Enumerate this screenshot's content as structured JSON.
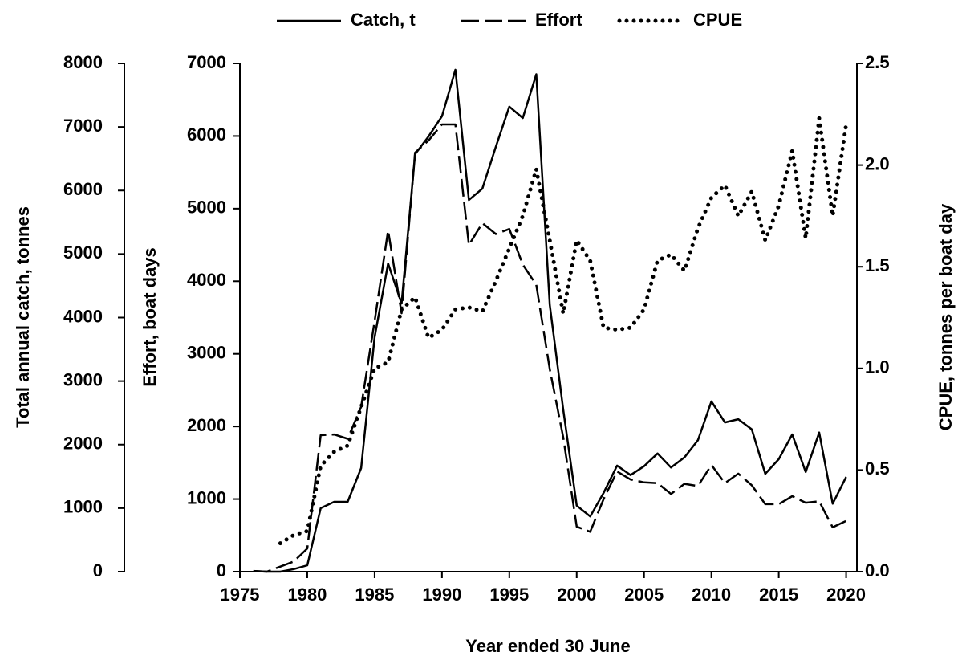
{
  "chart_data": {
    "type": "line",
    "x": [
      1976,
      1977,
      1978,
      1979,
      1980,
      1981,
      1982,
      1983,
      1984,
      1985,
      1986,
      1987,
      1988,
      1989,
      1990,
      1991,
      1992,
      1993,
      1994,
      1995,
      1996,
      1997,
      1998,
      1999,
      2000,
      2001,
      2002,
      2003,
      2004,
      2005,
      2006,
      2007,
      2008,
      2009,
      2010,
      2011,
      2012,
      2013,
      2014,
      2015,
      2016,
      2017,
      2018,
      2019,
      2020
    ],
    "xlim": [
      1975,
      2020.8
    ],
    "xticks": [
      1975,
      1980,
      1985,
      1990,
      1995,
      2000,
      2005,
      2010,
      2015,
      2020
    ],
    "xlabel": "Year ended 30 June",
    "ylabel": "Total annual catch, tonnes",
    "ylim": [
      0,
      8000
    ],
    "yticks": [
      0,
      1000,
      2000,
      3000,
      4000,
      5000,
      6000,
      7000,
      8000
    ],
    "y2label": "Effort, boat days",
    "y2lim": [
      0,
      7000
    ],
    "y2ticks": [
      0,
      1000,
      2000,
      3000,
      4000,
      5000,
      6000,
      7000
    ],
    "y3label": "CPUE, tonnes per boat day",
    "y3lim": [
      0,
      2.5
    ],
    "y3ticks": [
      {
        "value": 0,
        "label": "0.0"
      },
      {
        "value": 0.5,
        "label": "0.5"
      },
      {
        "value": 1,
        "label": "1.0"
      },
      {
        "value": 1.5,
        "label": "1.5"
      },
      {
        "value": 2,
        "label": "2.0"
      },
      {
        "value": 2.5,
        "label": "2.5"
      }
    ],
    "legend": "top",
    "series": [
      {
        "name": "Catch, t",
        "color": "#000000",
        "style": "solid",
        "axis": "y",
        "values": [
          10,
          0,
          0,
          40,
          100,
          1000,
          1100,
          1100,
          1630,
          3690,
          4850,
          4220,
          6570,
          6850,
          7170,
          7900,
          5850,
          6030,
          6690,
          7320,
          7140,
          7830,
          4200,
          2550,
          1040,
          870,
          1240,
          1670,
          1520,
          1660,
          1860,
          1640,
          1800,
          2070,
          2680,
          2350,
          2400,
          2240,
          1540,
          1770,
          2160,
          1570,
          2190,
          1070,
          1490
        ]
      },
      {
        "name": "Effort",
        "color": "#000000",
        "style": "dashed",
        "axis": "y2",
        "values": [
          10,
          0,
          70,
          140,
          320,
          1880,
          1890,
          1830,
          2270,
          3450,
          4700,
          3560,
          5770,
          5940,
          6160,
          6160,
          4500,
          4800,
          4650,
          4720,
          4230,
          3950,
          2790,
          1850,
          620,
          550,
          1000,
          1380,
          1270,
          1230,
          1220,
          1070,
          1210,
          1180,
          1470,
          1220,
          1350,
          1190,
          930,
          930,
          1040,
          950,
          970,
          610,
          700
        ]
      },
      {
        "name": "CPUE",
        "color": "#000000",
        "style": "dotted",
        "axis": "y3",
        "values": [
          null,
          null,
          0.14,
          0.18,
          0.2,
          0.52,
          0.59,
          0.62,
          0.81,
          1.0,
          1.03,
          1.29,
          1.35,
          1.15,
          1.19,
          1.29,
          1.3,
          1.28,
          1.43,
          1.59,
          1.75,
          1.98,
          1.63,
          1.27,
          1.63,
          1.53,
          1.2,
          1.19,
          1.2,
          1.29,
          1.53,
          1.56,
          1.48,
          1.69,
          1.84,
          1.9,
          1.75,
          1.87,
          1.63,
          1.8,
          2.07,
          1.64,
          2.23,
          1.75,
          2.2
        ]
      }
    ]
  }
}
